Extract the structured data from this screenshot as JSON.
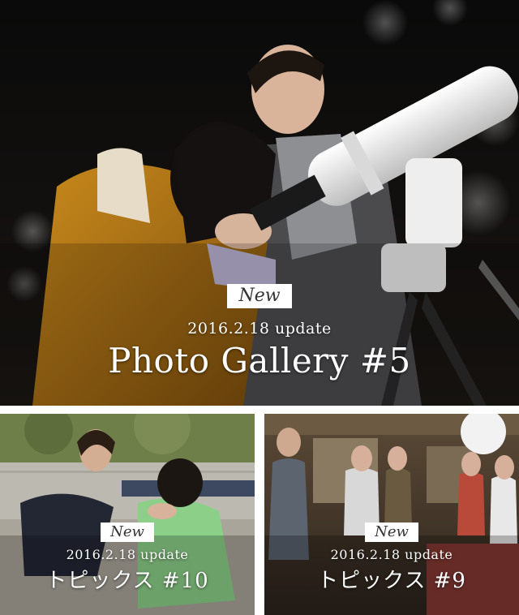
{
  "main": {
    "badge": "New",
    "update": "2016.2.18 update",
    "title": "Photo Gallery #5"
  },
  "topics": [
    {
      "badge": "New",
      "update": "2016.2.18 update",
      "title": "トピックス #10"
    },
    {
      "badge": "New",
      "update": "2016.2.18 update",
      "title": "トピックス #9"
    }
  ],
  "colors": {
    "badge_bg": "#ffffff",
    "text": "#ffffff"
  }
}
